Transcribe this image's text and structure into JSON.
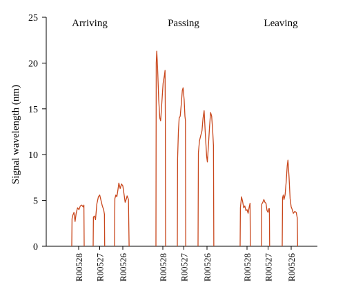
{
  "chart_data": {
    "type": "line",
    "ylabel": "Signal wavelength (nm)",
    "ylim": [
      0,
      25
    ],
    "yticks": [
      0,
      5,
      10,
      15,
      20,
      25
    ],
    "grid": false,
    "line_color": "#c8461b",
    "groups": [
      {
        "name": "Arriving",
        "series": [
          {
            "category": "R00528",
            "x_range": [
              0,
              1
            ],
            "points": [
              [
                0,
                0
              ],
              [
                0.02,
                3.0
              ],
              [
                0.08,
                3.4
              ],
              [
                0.16,
                3.7
              ],
              [
                0.24,
                2.7
              ],
              [
                0.32,
                3.6
              ],
              [
                0.42,
                4.2
              ],
              [
                0.52,
                4.0
              ],
              [
                0.62,
                4.4
              ],
              [
                0.72,
                4.5
              ],
              [
                0.82,
                4.3
              ],
              [
                0.88,
                4.5
              ],
              [
                0.9,
                0
              ]
            ]
          },
          {
            "category": "R00527",
            "x_range": [
              0,
              1
            ],
            "points": [
              [
                0,
                0
              ],
              [
                0.02,
                3.2
              ],
              [
                0.1,
                3.3
              ],
              [
                0.18,
                2.9
              ],
              [
                0.28,
                4.6
              ],
              [
                0.4,
                5.4
              ],
              [
                0.5,
                5.6
              ],
              [
                0.6,
                5.0
              ],
              [
                0.7,
                4.4
              ],
              [
                0.8,
                4.0
              ],
              [
                0.86,
                3.5
              ],
              [
                0.88,
                0
              ]
            ]
          },
          {
            "category": "R00526",
            "x_range": [
              0,
              1
            ],
            "points": [
              [
                0,
                0
              ],
              [
                0.02,
                5.2
              ],
              [
                0.08,
                5.6
              ],
              [
                0.14,
                5.4
              ],
              [
                0.2,
                6.1
              ],
              [
                0.26,
                6.9
              ],
              [
                0.34,
                6.3
              ],
              [
                0.42,
                6.8
              ],
              [
                0.5,
                6.6
              ],
              [
                0.58,
                5.6
              ],
              [
                0.64,
                4.8
              ],
              [
                0.7,
                5.1
              ],
              [
                0.76,
                5.5
              ],
              [
                0.84,
                5.1
              ],
              [
                0.88,
                0
              ]
            ]
          }
        ]
      },
      {
        "name": "Passing",
        "series": [
          {
            "category": "R00528",
            "x_range": [
              0,
              1
            ],
            "points": [
              [
                0,
                0
              ],
              [
                0.02,
                20.0
              ],
              [
                0.06,
                21.3
              ],
              [
                0.12,
                19.5
              ],
              [
                0.2,
                16.0
              ],
              [
                0.28,
                14.0
              ],
              [
                0.34,
                13.7
              ],
              [
                0.42,
                15.5
              ],
              [
                0.52,
                17.8
              ],
              [
                0.62,
                18.7
              ],
              [
                0.66,
                19.2
              ],
              [
                0.68,
                14.0
              ],
              [
                0.7,
                0
              ]
            ]
          },
          {
            "category": "R00527",
            "x_range": [
              0,
              1
            ],
            "points": [
              [
                0,
                0
              ],
              [
                0.02,
                9.5
              ],
              [
                0.08,
                12.5
              ],
              [
                0.14,
                14.0
              ],
              [
                0.22,
                14.2
              ],
              [
                0.3,
                15.5
              ],
              [
                0.38,
                17.0
              ],
              [
                0.44,
                17.3
              ],
              [
                0.52,
                16.0
              ],
              [
                0.58,
                14.2
              ],
              [
                0.62,
                13.7
              ],
              [
                0.64,
                0
              ]
            ]
          },
          {
            "category": "R00526",
            "x_range": [
              0,
              1
            ],
            "points": [
              [
                0,
                0
              ],
              [
                0.02,
                10.2
              ],
              [
                0.08,
                11.5
              ],
              [
                0.14,
                12.0
              ],
              [
                0.22,
                12.6
              ],
              [
                0.28,
                14.0
              ],
              [
                0.34,
                14.8
              ],
              [
                0.4,
                12.5
              ],
              [
                0.48,
                9.8
              ],
              [
                0.52,
                9.2
              ],
              [
                0.58,
                11.0
              ],
              [
                0.64,
                13.0
              ],
              [
                0.7,
                14.6
              ],
              [
                0.76,
                14.2
              ],
              [
                0.82,
                12.5
              ],
              [
                0.86,
                11.0
              ],
              [
                0.88,
                0
              ]
            ]
          }
        ]
      },
      {
        "name": "Leaving",
        "series": [
          {
            "category": "R00528",
            "x_range": [
              0,
              1
            ],
            "points": [
              [
                0,
                0
              ],
              [
                0.02,
                4.2
              ],
              [
                0.1,
                5.4
              ],
              [
                0.18,
                4.9
              ],
              [
                0.26,
                4.2
              ],
              [
                0.34,
                4.4
              ],
              [
                0.42,
                3.9
              ],
              [
                0.5,
                4.0
              ],
              [
                0.58,
                3.6
              ],
              [
                0.66,
                4.3
              ],
              [
                0.72,
                4.7
              ],
              [
                0.74,
                0
              ]
            ]
          },
          {
            "category": "R00527",
            "x_range": [
              0,
              1
            ],
            "points": [
              [
                0,
                0
              ],
              [
                0.02,
                4.6
              ],
              [
                0.1,
                4.8
              ],
              [
                0.18,
                5.1
              ],
              [
                0.26,
                4.8
              ],
              [
                0.34,
                4.7
              ],
              [
                0.42,
                3.9
              ],
              [
                0.5,
                3.7
              ],
              [
                0.56,
                4.1
              ],
              [
                0.6,
                4.1
              ],
              [
                0.62,
                0
              ]
            ]
          },
          {
            "category": "R00526",
            "x_range": [
              0,
              1
            ],
            "points": [
              [
                0,
                0
              ],
              [
                0.02,
                5.3
              ],
              [
                0.06,
                5.6
              ],
              [
                0.1,
                5.1
              ],
              [
                0.16,
                5.6
              ],
              [
                0.22,
                7.0
              ],
              [
                0.28,
                8.8
              ],
              [
                0.32,
                9.4
              ],
              [
                0.38,
                7.6
              ],
              [
                0.44,
                5.2
              ],
              [
                0.5,
                4.3
              ],
              [
                0.56,
                4.0
              ],
              [
                0.62,
                3.6
              ],
              [
                0.7,
                3.8
              ],
              [
                0.78,
                3.7
              ],
              [
                0.84,
                3.1
              ],
              [
                0.86,
                0
              ]
            ]
          }
        ]
      }
    ]
  }
}
